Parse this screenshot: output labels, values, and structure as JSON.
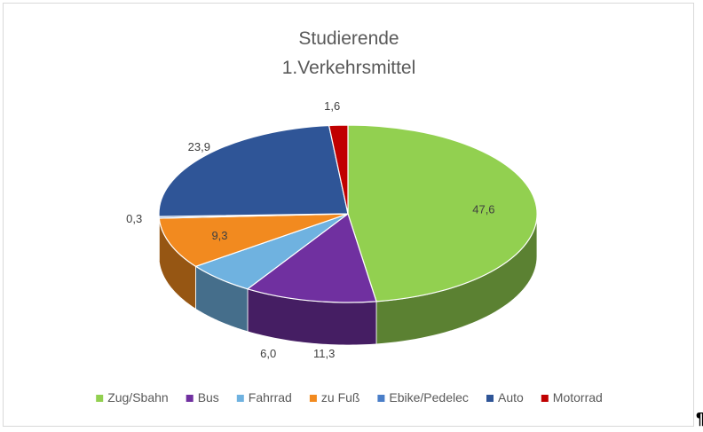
{
  "chart_data": {
    "type": "pie",
    "variant": "3d",
    "title_lines": [
      "Studierende",
      "1.Verkehrsmittel"
    ],
    "slices": [
      {
        "name": "Zug/Sbahn",
        "value": 47.6,
        "label": "47,6",
        "color": "#92d050"
      },
      {
        "name": "Bus",
        "value": 11.3,
        "label": "11,3",
        "color": "#7030a0"
      },
      {
        "name": "Fahrrad",
        "value": 6.0,
        "label": "6,0",
        "color": "#6fb2e0"
      },
      {
        "name": "zu Fuß",
        "value": 9.3,
        "label": "9,3",
        "color": "#f28a1f"
      },
      {
        "name": "Ebike/Pedelec",
        "value": 0.3,
        "label": "0,3",
        "color": "#4a7ec8"
      },
      {
        "name": "Auto",
        "value": 23.9,
        "label": "23,9",
        "color": "#2f5597"
      },
      {
        "name": "Motorrad",
        "value": 1.6,
        "label": "1,6",
        "color": "#c00000"
      }
    ],
    "legend_position": "bottom"
  },
  "pilcrow": "¶"
}
